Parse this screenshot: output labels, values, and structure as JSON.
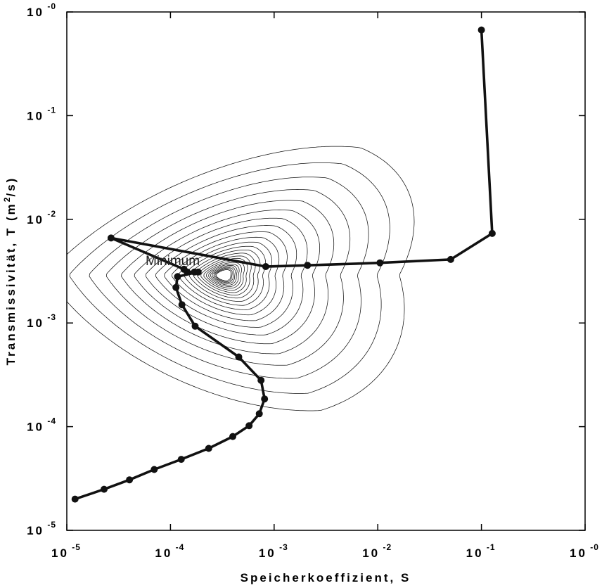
{
  "chart_data": {
    "type": "line",
    "xlabel": "Speicherkoeffizient, S",
    "ylabel_parts": [
      "Transmissivität, T (m",
      "2",
      "/s)"
    ],
    "xscale": "log",
    "yscale": "log",
    "xlim": [
      1e-05,
      1
    ],
    "ylim": [
      1e-05,
      1
    ],
    "x_ticks": [
      {
        "base": "10",
        "exp": "-5"
      },
      {
        "base": "10",
        "exp": "-4"
      },
      {
        "base": "10",
        "exp": "-3"
      },
      {
        "base": "10",
        "exp": "-2"
      },
      {
        "base": "10",
        "exp": "-1"
      },
      {
        "base": "10",
        "exp": "-0"
      }
    ],
    "y_ticks": [
      {
        "base": "10",
        "exp": "-5"
      },
      {
        "base": "10",
        "exp": "-4"
      },
      {
        "base": "10",
        "exp": "-3"
      },
      {
        "base": "10",
        "exp": "-2"
      },
      {
        "base": "10",
        "exp": "-1"
      },
      {
        "base": "10",
        "exp": "-0"
      }
    ],
    "annotations": [
      {
        "text": "Minimum",
        "x": 5.75e-05,
        "y": 0.0036
      }
    ],
    "contours": {
      "minimum": {
        "S": 0.00032,
        "T": 0.0029
      },
      "count": 24
    },
    "series": [
      {
        "name": "",
        "points": [
          {
            "S": 0.1,
            "T": 0.67
          },
          {
            "S": 0.127,
            "T": 0.0073
          },
          {
            "S": 0.0505,
            "T": 0.0041
          },
          {
            "S": 0.0105,
            "T": 0.0038
          },
          {
            "S": 0.0021,
            "T": 0.0036
          },
          {
            "S": 0.00083,
            "T": 0.0035
          },
          {
            "S": 2.67e-05,
            "T": 0.0066
          },
          {
            "S": 0.000135,
            "T": 0.0033
          },
          {
            "S": 0.000145,
            "T": 0.0031
          },
          {
            "S": 0.00017,
            "T": 0.0031
          },
          {
            "S": 0.000185,
            "T": 0.0031
          },
          {
            "S": 0.000117,
            "T": 0.0028
          },
          {
            "S": 0.000113,
            "T": 0.0022
          },
          {
            "S": 0.000129,
            "T": 0.0015
          },
          {
            "S": 0.000173,
            "T": 0.00093
          },
          {
            "S": 0.000456,
            "T": 0.00047
          },
          {
            "S": 0.000748,
            "T": 0.00028
          },
          {
            "S": 0.000808,
            "T": 0.000185
          },
          {
            "S": 0.000719,
            "T": 0.000133
          },
          {
            "S": 0.000573,
            "T": 0.000102
          },
          {
            "S": 0.000399,
            "T": 8.03e-05
          },
          {
            "S": 0.000234,
            "T": 6.17e-05
          },
          {
            "S": 0.000127,
            "T": 4.84e-05
          },
          {
            "S": 6.97e-05,
            "T": 3.86e-05
          },
          {
            "S": 4.02e-05,
            "T": 3.07e-05
          },
          {
            "S": 2.29e-05,
            "T": 2.49e-05
          },
          {
            "S": 1.2e-05,
            "T": 2e-05
          }
        ]
      }
    ]
  }
}
